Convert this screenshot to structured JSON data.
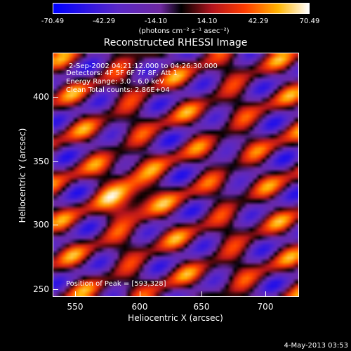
{
  "colorbar": {
    "ticks": [
      "-70.49",
      "-42.29",
      "-14.10",
      "14.10",
      "42.29",
      "70.49"
    ],
    "unit": "(photons cm⁻² s⁻¹ asec⁻²)"
  },
  "title": "Reconstructed RHESSI Image",
  "annotations": {
    "time": "2-Sep-2002 04:21:12.000 to 04:26:30.000",
    "detectors": "Detectors: 4F 5F 6F 7F 8F, Att 1",
    "energy": "Energy Range: 3.0 - 6.0 keV",
    "clean": "Clean    Total counts: 2.86E+04",
    "peak": "Position of Peak = [593,328]"
  },
  "axes": {
    "xlabel": "Heliocentric X (arcsec)",
    "ylabel": "Heliocentric Y (arcsec)",
    "xticks": [
      "550",
      "600",
      "650",
      "700"
    ],
    "yticks": [
      "400",
      "350",
      "300",
      "250"
    ]
  },
  "footer": "4-May-2013 03:53"
}
